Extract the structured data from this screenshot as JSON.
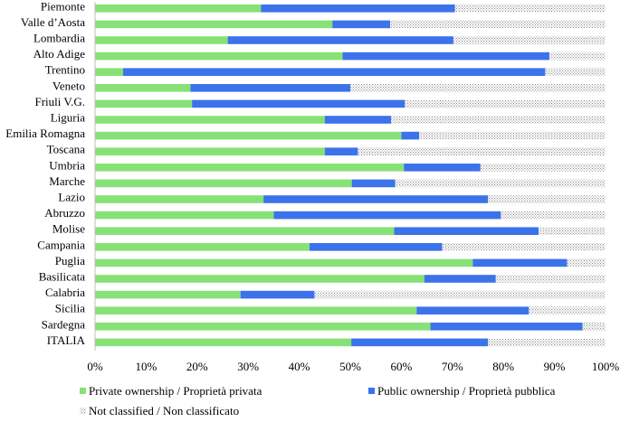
{
  "colors": {
    "private": "#86e276",
    "public": "#3b73ea",
    "not_classified_bg": "#ffffff",
    "not_classified_dots": "#8a8a8a",
    "axis": "#bfbfbf"
  },
  "chart_data": {
    "type": "bar",
    "orientation": "horizontal",
    "stacked": true,
    "percent": true,
    "title": "",
    "xlabel": "",
    "ylabel": "",
    "xlim": [
      0,
      100
    ],
    "x_ticks": [
      "0%",
      "10%",
      "20%",
      "30%",
      "40%",
      "50%",
      "60%",
      "70%",
      "80%",
      "90%",
      "100%"
    ],
    "grid": false,
    "legend_position": "bottom",
    "categories": [
      "Piemonte",
      "Valle d’Aosta",
      "Lombardia",
      "Alto Adige",
      "Trentino",
      "Veneto",
      "Friuli V.G.",
      "Liguria",
      "Emilia Romagna",
      "Toscana",
      "Umbria",
      "Marche",
      "Lazio",
      "Abruzzo",
      "Molise",
      "Campania",
      "Puglia",
      "Basilicata",
      "Calabria",
      "Sicilia",
      "Sardegna",
      "ITALIA"
    ],
    "series": [
      {
        "name": "Private ownership / Proprietà privata",
        "color_key": "private",
        "values": [
          32.5,
          46.5,
          26,
          48.5,
          5.5,
          18.7,
          19,
          45,
          60,
          45,
          60.5,
          50.3,
          33,
          35,
          58.6,
          42,
          74,
          64.5,
          28.5,
          63,
          65.7,
          50.2
        ]
      },
      {
        "name": "Public ownership / Proprietà pubblica",
        "color_key": "public",
        "values": [
          38,
          11.3,
          44.2,
          40.5,
          82.7,
          31.3,
          41.7,
          13,
          3.5,
          6.5,
          15,
          8.5,
          44,
          44.5,
          28.3,
          26,
          18.5,
          14,
          14.5,
          22,
          29.8,
          26.8
        ]
      },
      {
        "name": "Not classified / Non classificato",
        "color_key": "not_classified",
        "values": [
          29.5,
          42.2,
          29.8,
          11,
          11.8,
          50,
          39.3,
          42,
          36.5,
          48.5,
          24.5,
          41.2,
          23,
          20.5,
          13.1,
          32,
          7.5,
          21.5,
          57,
          15,
          4.5,
          23
        ]
      }
    ]
  }
}
